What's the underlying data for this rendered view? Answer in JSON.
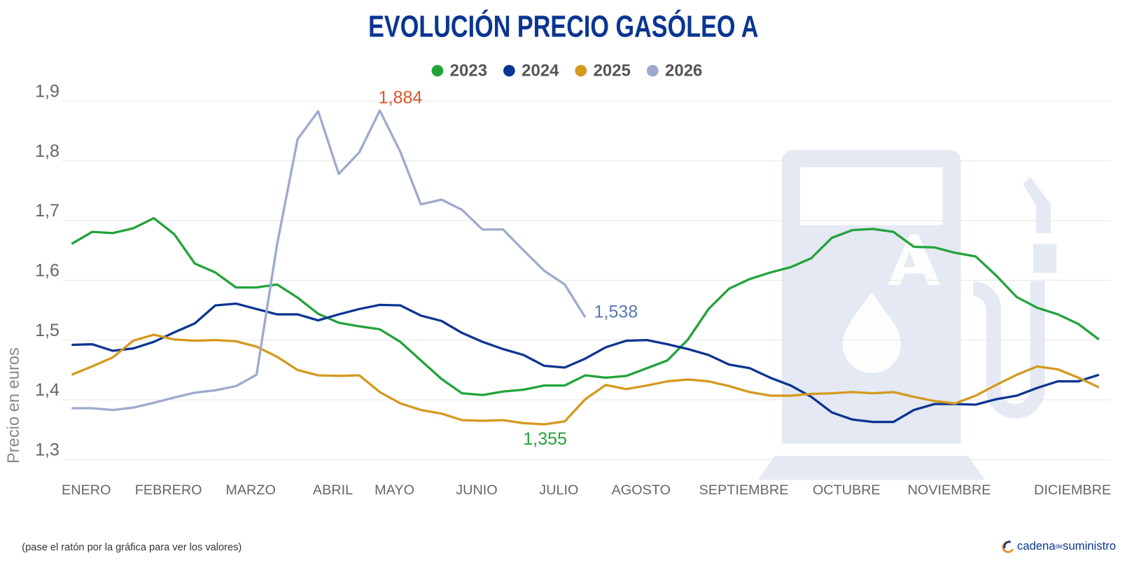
{
  "chart_data": {
    "type": "line",
    "title": "EVOLUCIÓN PRECIO GASÓLEO A",
    "y_label": "Precio en euros",
    "note": "(pase el ratón por la gráfica para ver los valores)",
    "brand": [
      "cadena",
      "de",
      "suministro"
    ],
    "grid": true,
    "legend": "top",
    "categories": [
      null,
      "ENERO",
      null,
      null,
      null,
      "FEBRERO",
      null,
      null,
      null,
      "MARZO",
      null,
      null,
      null,
      "ABRIL",
      null,
      null,
      "MAYO",
      null,
      null,
      null,
      "JUNIO",
      null,
      null,
      null,
      "JULIO",
      null,
      null,
      null,
      "AGOSTO",
      null,
      null,
      null,
      null,
      "SEPTIEMBRE",
      null,
      null,
      null,
      null,
      "OCTUBRE",
      null,
      null,
      null,
      null,
      "NOVIEMBRE",
      null,
      null,
      null,
      null,
      null,
      "DICIEMBRE",
      null
    ],
    "ylim": [
      1.3,
      1.9
    ],
    "yticks": [
      {
        "value": 1.3,
        "label": "1,3"
      },
      {
        "value": 1.4,
        "label": "1,4"
      },
      {
        "value": 1.5,
        "label": "1,5"
      },
      {
        "value": 1.6,
        "label": "1,6"
      },
      {
        "value": 1.7,
        "label": "1,7"
      },
      {
        "value": 1.8,
        "label": "1,8"
      },
      {
        "value": 1.9,
        "label": "1,9"
      }
    ],
    "series": [
      {
        "name": "2023",
        "color": "#22a33a",
        "values": [
          1.661,
          1.681,
          1.679,
          1.687,
          1.704,
          1.677,
          1.628,
          1.613,
          1.588,
          1.588,
          1.593,
          1.571,
          1.544,
          1.529,
          1.523,
          1.518,
          1.497,
          1.466,
          1.435,
          1.411,
          1.408,
          1.414,
          1.417,
          1.424,
          1.424,
          1.441,
          1.437,
          1.44,
          1.453,
          1.466,
          1.501,
          1.552,
          1.586,
          1.602,
          1.613,
          1.622,
          1.637,
          1.671,
          1.684,
          1.686,
          1.681,
          1.656,
          1.655,
          1.646,
          1.64,
          1.608,
          1.572,
          1.554,
          1.543,
          1.527,
          1.501
        ]
      },
      {
        "name": "2024",
        "color": "#0a3592",
        "values": [
          1.492,
          1.493,
          1.482,
          1.486,
          1.497,
          1.513,
          1.528,
          1.558,
          1.561,
          1.552,
          1.543,
          1.543,
          1.533,
          1.543,
          1.552,
          1.559,
          1.558,
          1.541,
          1.532,
          1.512,
          1.497,
          1.485,
          1.475,
          1.457,
          1.454,
          1.469,
          1.488,
          1.499,
          1.5,
          1.493,
          1.485,
          1.475,
          1.459,
          1.453,
          1.437,
          1.424,
          1.405,
          1.379,
          1.367,
          1.363,
          1.363,
          1.383,
          1.393,
          1.393,
          1.392,
          1.401,
          1.407,
          1.42,
          1.431,
          1.431,
          1.442
        ]
      },
      {
        "name": "2025",
        "color": "#d4991e",
        "values": [
          1.442,
          1.456,
          1.471,
          1.499,
          1.509,
          1.501,
          1.499,
          1.5,
          1.498,
          1.489,
          1.472,
          1.45,
          1.441,
          1.44,
          1.441,
          1.413,
          1.394,
          1.383,
          1.377,
          1.366,
          1.365,
          1.366,
          1.361,
          1.359,
          1.364,
          1.401,
          1.425,
          1.418,
          1.424,
          1.431,
          1.434,
          1.431,
          1.423,
          1.413,
          1.407,
          1.407,
          1.41,
          1.411,
          1.413,
          1.411,
          1.413,
          1.405,
          1.398,
          1.394,
          1.407,
          1.425,
          1.442,
          1.456,
          1.451,
          1.437,
          1.421
        ]
      },
      {
        "name": "2026",
        "color": "#9eaacd",
        "values": [
          1.386,
          1.386,
          1.383,
          1.387,
          1.395,
          1.404,
          1.412,
          1.416,
          1.423,
          1.442,
          1.66,
          1.836,
          1.883,
          1.778,
          1.814,
          1.884,
          1.815,
          1.727,
          1.735,
          1.718,
          1.685,
          1.685,
          1.65,
          1.616,
          1.593,
          1.538,
          null,
          null,
          null,
          null,
          null,
          null,
          null,
          null,
          null,
          null,
          null,
          null,
          null,
          null,
          null,
          null,
          null,
          null,
          null,
          null,
          null,
          null,
          null,
          null,
          null
        ]
      }
    ],
    "annotations": [
      {
        "text": "1,884",
        "color": "#d9572c"
      },
      {
        "text": "1,538",
        "color": "#5a78b0"
      },
      {
        "text": "1,355",
        "color": "#22a33a"
      }
    ]
  }
}
